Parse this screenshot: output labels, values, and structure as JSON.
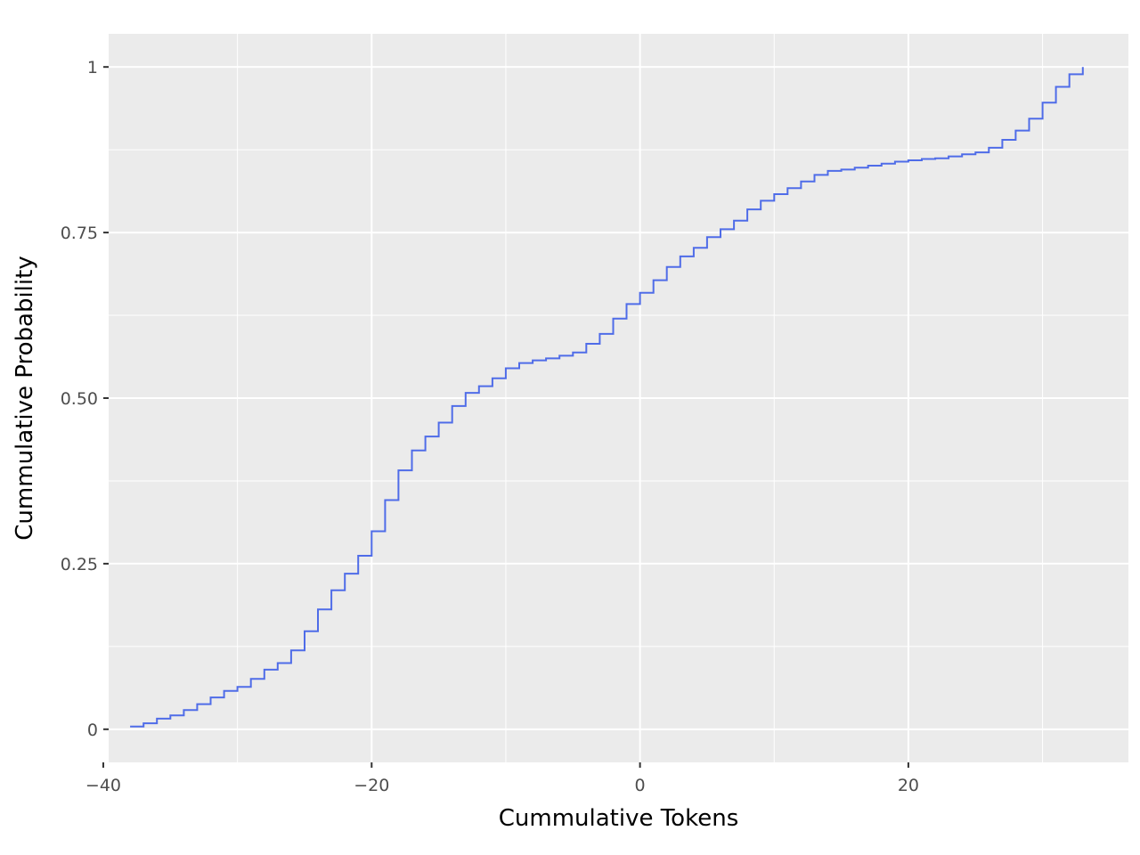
{
  "chart_data": {
    "type": "line",
    "step": true,
    "title": "",
    "xlabel": "Cummulative Tokens",
    "ylabel": "Cummulative Probability",
    "xlim": [
      -39.6,
      36.4
    ],
    "ylim": [
      -0.05,
      1.05
    ],
    "x_ticks": [
      -40,
      -20,
      0,
      20
    ],
    "x_tick_labels": [
      "−40",
      "−20",
      "0",
      "20"
    ],
    "y_ticks": [
      0,
      0.25,
      0.5,
      0.75,
      1
    ],
    "y_tick_labels": [
      "0",
      "0.25",
      "0.50",
      "0.75",
      "1"
    ],
    "grid": true,
    "colors": {
      "panel_background": "#EBEBEB",
      "grid": "#FFFFFF",
      "series": "#4F6CE8"
    },
    "series": [
      {
        "x": [
          -38,
          -37,
          -36,
          -35,
          -34,
          -33,
          -32,
          -31,
          -30,
          -29,
          -28,
          -27,
          -26,
          -25,
          -24,
          -23,
          -22,
          -21,
          -20,
          -19,
          -18,
          -17,
          -16,
          -15,
          -14,
          -13,
          -12,
          -11,
          -10,
          -9,
          -8,
          -7,
          -6,
          -5,
          -4,
          -3,
          -2,
          -1,
          0,
          1,
          2,
          3,
          4,
          5,
          6,
          7,
          8,
          9,
          10,
          11,
          12,
          13,
          14,
          15,
          16,
          17,
          18,
          19,
          20,
          21,
          22,
          23,
          24,
          25,
          26,
          27,
          28,
          29,
          30,
          31,
          32,
          33
        ],
        "y": [
          0.004,
          0.009,
          0.016,
          0.021,
          0.029,
          0.038,
          0.048,
          0.058,
          0.064,
          0.076,
          0.09,
          0.1,
          0.119,
          0.148,
          0.181,
          0.21,
          0.235,
          0.262,
          0.299,
          0.346,
          0.391,
          0.421,
          0.442,
          0.463,
          0.488,
          0.508,
          0.518,
          0.53,
          0.545,
          0.553,
          0.557,
          0.56,
          0.564,
          0.569,
          0.582,
          0.597,
          0.62,
          0.642,
          0.659,
          0.678,
          0.698,
          0.714,
          0.727,
          0.743,
          0.755,
          0.768,
          0.785,
          0.798,
          0.808,
          0.817,
          0.827,
          0.837,
          0.843,
          0.845,
          0.848,
          0.851,
          0.854,
          0.857,
          0.859,
          0.861,
          0.862,
          0.865,
          0.868,
          0.871,
          0.878,
          0.89,
          0.904,
          0.922,
          0.946,
          0.97,
          0.989,
          1.0
        ]
      }
    ]
  }
}
